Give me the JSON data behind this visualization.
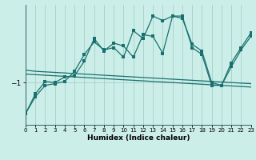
{
  "xlabel": "Humidex (Indice chaleur)",
  "background_color": "#cceee8",
  "grid_color": "#aad4cc",
  "line_color": "#1a7070",
  "x": [
    0,
    1,
    2,
    3,
    4,
    5,
    6,
    7,
    8,
    9,
    10,
    11,
    12,
    13,
    14,
    15,
    16,
    17,
    18,
    19,
    20,
    21,
    22,
    23
  ],
  "line1": [
    -1.55,
    -1.25,
    -1.05,
    -1.02,
    -0.98,
    -0.8,
    -0.5,
    -0.28,
    -0.42,
    -0.38,
    -0.55,
    -0.08,
    -0.22,
    0.18,
    0.1,
    0.18,
    0.18,
    -0.38,
    -0.5,
    -1.05,
    -1.05,
    -0.72,
    -0.42,
    -0.18
  ],
  "line2": [
    -1.55,
    -1.2,
    -0.98,
    -1.0,
    -0.9,
    -0.88,
    -0.62,
    -0.22,
    -0.44,
    -0.3,
    -0.35,
    -0.55,
    -0.15,
    -0.18,
    -0.48,
    0.18,
    0.14,
    -0.32,
    -0.44,
    -1.0,
    -1.05,
    -0.65,
    -0.38,
    -0.12
  ],
  "line3": [
    -0.85,
    -0.86,
    -0.87,
    -0.88,
    -0.89,
    -0.9,
    -0.91,
    -0.92,
    -0.93,
    -0.94,
    -0.95,
    -0.96,
    -0.97,
    -0.98,
    -0.99,
    -1.0,
    -1.01,
    -1.02,
    -1.03,
    -1.04,
    -1.05,
    -1.06,
    -1.07,
    -1.08
  ],
  "line4": [
    -0.78,
    -0.8,
    -0.81,
    -0.82,
    -0.83,
    -0.84,
    -0.85,
    -0.86,
    -0.87,
    -0.88,
    -0.89,
    -0.9,
    -0.91,
    -0.92,
    -0.93,
    -0.94,
    -0.95,
    -0.96,
    -0.97,
    -0.98,
    -0.99,
    -1.0,
    -1.01,
    -1.02
  ],
  "yticks": [
    -1
  ],
  "xticks": [
    0,
    1,
    2,
    3,
    4,
    5,
    6,
    7,
    8,
    9,
    10,
    11,
    12,
    13,
    14,
    15,
    16,
    17,
    18,
    19,
    20,
    21,
    22,
    23
  ],
  "xlim": [
    0,
    23
  ],
  "ylim": [
    -1.75,
    0.38
  ]
}
